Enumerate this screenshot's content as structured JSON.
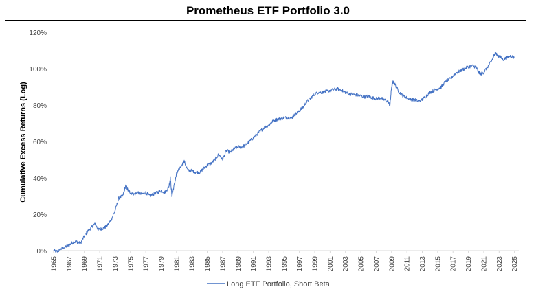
{
  "chart_data": {
    "type": "line",
    "title": "Prometheus ETF Portfolio 3.0",
    "xlabel": "",
    "ylabel": "Cumulative Excess Returns (Log)",
    "xlim": [
      1965,
      2025.3
    ],
    "ylim": [
      0,
      120
    ],
    "x_ticks": [
      "1965",
      "1967",
      "1969",
      "1971",
      "1973",
      "1975",
      "1977",
      "1979",
      "1981",
      "1983",
      "1985",
      "1987",
      "1989",
      "1991",
      "1993",
      "1995",
      "1997",
      "1999",
      "2001",
      "2003",
      "2005",
      "2007",
      "2009",
      "2011",
      "2013",
      "2015",
      "2017",
      "2019",
      "2021",
      "2023",
      "2025"
    ],
    "y_ticks": [
      "0%",
      "20%",
      "40%",
      "60%",
      "80%",
      "100%",
      "120%"
    ],
    "y_tick_values": [
      0,
      20,
      40,
      60,
      80,
      100,
      120
    ],
    "grid": false,
    "legend_position": "bottom",
    "series": [
      {
        "name": "Long ETF Portfolio, Short Beta",
        "color": "#4472c4",
        "points": [
          [
            1965.0,
            0
          ],
          [
            1965.5,
            -0.5
          ],
          [
            1966.0,
            1
          ],
          [
            1966.5,
            2
          ],
          [
            1967.0,
            3
          ],
          [
            1967.5,
            4.5
          ],
          [
            1968.0,
            5
          ],
          [
            1968.5,
            4
          ],
          [
            1969.0,
            8
          ],
          [
            1969.5,
            11
          ],
          [
            1970.0,
            13
          ],
          [
            1970.4,
            15
          ],
          [
            1970.8,
            11.5
          ],
          [
            1971.2,
            12
          ],
          [
            1971.6,
            12.5
          ],
          [
            1972.0,
            14
          ],
          [
            1972.5,
            17
          ],
          [
            1973.0,
            22
          ],
          [
            1973.5,
            29
          ],
          [
            1974.0,
            30
          ],
          [
            1974.4,
            36
          ],
          [
            1974.7,
            33
          ],
          [
            1975.0,
            32
          ],
          [
            1975.5,
            31
          ],
          [
            1976.0,
            32
          ],
          [
            1976.5,
            31
          ],
          [
            1977.0,
            32
          ],
          [
            1977.5,
            30
          ],
          [
            1978.0,
            31
          ],
          [
            1978.5,
            32
          ],
          [
            1979.0,
            33
          ],
          [
            1979.5,
            32
          ],
          [
            1980.0,
            35
          ],
          [
            1980.2,
            40
          ],
          [
            1980.4,
            30
          ],
          [
            1980.7,
            36
          ],
          [
            1981.0,
            42
          ],
          [
            1981.5,
            46
          ],
          [
            1982.0,
            49
          ],
          [
            1982.5,
            44
          ],
          [
            1983.0,
            44
          ],
          [
            1983.5,
            43
          ],
          [
            1984.0,
            43
          ],
          [
            1984.5,
            45
          ],
          [
            1985.0,
            47
          ],
          [
            1985.5,
            48
          ],
          [
            1986.0,
            50
          ],
          [
            1986.5,
            53
          ],
          [
            1987.0,
            50
          ],
          [
            1987.5,
            55
          ],
          [
            1988.0,
            54
          ],
          [
            1988.5,
            56
          ],
          [
            1989.0,
            57
          ],
          [
            1989.5,
            57
          ],
          [
            1990.0,
            58
          ],
          [
            1990.5,
            60
          ],
          [
            1991.0,
            62
          ],
          [
            1991.5,
            64
          ],
          [
            1992.0,
            66
          ],
          [
            1992.5,
            68
          ],
          [
            1993.0,
            69
          ],
          [
            1993.5,
            71
          ],
          [
            1994.0,
            72
          ],
          [
            1994.5,
            72.5
          ],
          [
            1995.0,
            73
          ],
          [
            1995.5,
            73
          ],
          [
            1996.0,
            73
          ],
          [
            1996.5,
            75
          ],
          [
            1997.0,
            77
          ],
          [
            1997.5,
            79
          ],
          [
            1998.0,
            82
          ],
          [
            1998.5,
            84
          ],
          [
            1999.0,
            86
          ],
          [
            1999.5,
            87
          ],
          [
            2000.0,
            87
          ],
          [
            2000.5,
            87.5
          ],
          [
            2001.0,
            88
          ],
          [
            2001.5,
            88.5
          ],
          [
            2002.0,
            89
          ],
          [
            2002.5,
            88
          ],
          [
            2003.0,
            87
          ],
          [
            2003.5,
            86
          ],
          [
            2004.0,
            86
          ],
          [
            2004.5,
            85.5
          ],
          [
            2005.0,
            85
          ],
          [
            2005.5,
            84.5
          ],
          [
            2006.0,
            85
          ],
          [
            2006.5,
            84
          ],
          [
            2007.0,
            83.5
          ],
          [
            2007.5,
            84
          ],
          [
            2008.0,
            83
          ],
          [
            2008.5,
            82
          ],
          [
            2008.8,
            80
          ],
          [
            2009.0,
            90
          ],
          [
            2009.2,
            93
          ],
          [
            2009.5,
            91
          ],
          [
            2010.0,
            87
          ],
          [
            2010.5,
            85
          ],
          [
            2011.0,
            84
          ],
          [
            2011.5,
            83
          ],
          [
            2012.0,
            83
          ],
          [
            2012.5,
            82
          ],
          [
            2013.0,
            83
          ],
          [
            2013.5,
            85
          ],
          [
            2014.0,
            87
          ],
          [
            2014.5,
            88
          ],
          [
            2015.0,
            89
          ],
          [
            2015.5,
            90
          ],
          [
            2016.0,
            93
          ],
          [
            2016.5,
            94
          ],
          [
            2017.0,
            96
          ],
          [
            2017.5,
            98
          ],
          [
            2018.0,
            99
          ],
          [
            2018.5,
            100
          ],
          [
            2019.0,
            101
          ],
          [
            2019.5,
            101.5
          ],
          [
            2020.0,
            101
          ],
          [
            2020.3,
            98
          ],
          [
            2020.6,
            97
          ],
          [
            2021.0,
            98
          ],
          [
            2021.5,
            101
          ],
          [
            2022.0,
            104
          ],
          [
            2022.3,
            107
          ],
          [
            2022.5,
            109
          ],
          [
            2022.8,
            107
          ],
          [
            2023.0,
            107
          ],
          [
            2023.5,
            105
          ],
          [
            2024.0,
            106
          ],
          [
            2024.5,
            107
          ],
          [
            2025.0,
            106
          ]
        ]
      }
    ]
  }
}
